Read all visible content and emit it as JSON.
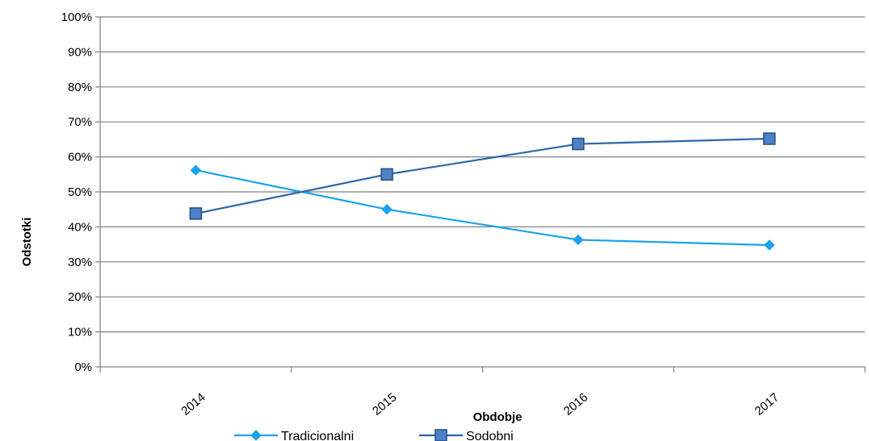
{
  "chart_data": {
    "type": "line",
    "title": "",
    "xlabel": "Obdobje",
    "ylabel": "Odstotki",
    "categories": [
      "2014",
      "2015",
      "2016",
      "2017"
    ],
    "ylim": [
      0,
      100
    ],
    "y_tick_labels": [
      "0%",
      "10%",
      "20%",
      "30%",
      "40%",
      "50%",
      "60%",
      "70%",
      "80%",
      "90%",
      "100%"
    ],
    "grid": true,
    "legend_position": "bottom",
    "series": [
      {
        "name": "Tradicionalni",
        "values": [
          56.2,
          45.0,
          36.3,
          34.8
        ],
        "color": "#1aa3ec",
        "marker": "diamond"
      },
      {
        "name": "Sodobni",
        "values": [
          43.8,
          55.0,
          63.7,
          65.2
        ],
        "color": "#2e65a8",
        "marker": "square"
      }
    ]
  }
}
